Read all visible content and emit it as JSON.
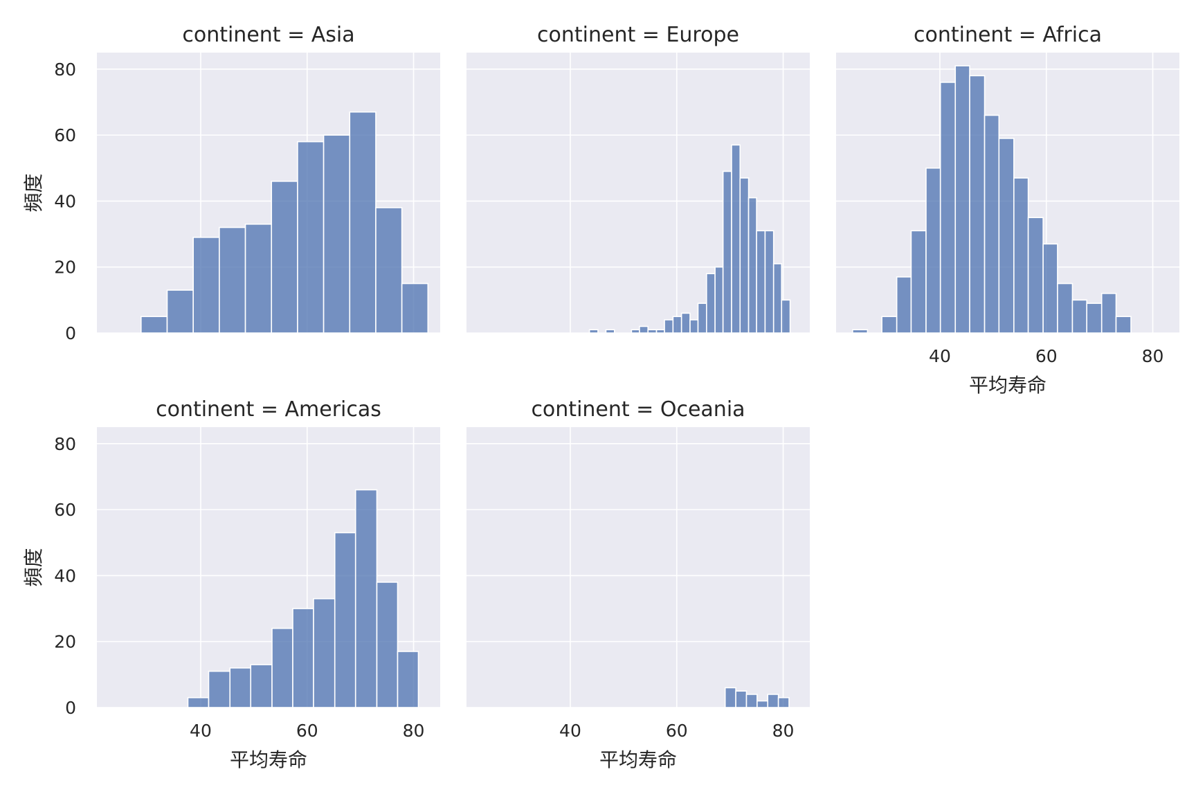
{
  "figure": {
    "background": "#ffffff",
    "panel_background": "#eaeaf2",
    "grid_color": "#ffffff",
    "bar_color": "#4c72b0",
    "bar_edge_color": "#ffffff"
  },
  "chart_data": [
    {
      "type": "bar",
      "title": "continent = Asia",
      "xlabel": "",
      "ylabel": "頻度",
      "xlim": [
        20.5,
        85
      ],
      "ylim": [
        0,
        85
      ],
      "xticks": [],
      "yticks": [
        0,
        20,
        40,
        60,
        80
      ],
      "grid": true,
      "bins": [
        {
          "x0": 28.8,
          "x1": 33.7,
          "count": 5
        },
        {
          "x0": 33.7,
          "x1": 38.6,
          "count": 13
        },
        {
          "x0": 38.6,
          "x1": 43.5,
          "count": 29
        },
        {
          "x0": 43.5,
          "x1": 48.4,
          "count": 32
        },
        {
          "x0": 48.4,
          "x1": 53.3,
          "count": 33
        },
        {
          "x0": 53.3,
          "x1": 58.2,
          "count": 46
        },
        {
          "x0": 58.2,
          "x1": 63.1,
          "count": 58
        },
        {
          "x0": 63.1,
          "x1": 68.0,
          "count": 60
        },
        {
          "x0": 68.0,
          "x1": 72.9,
          "count": 67
        },
        {
          "x0": 72.9,
          "x1": 77.8,
          "count": 38
        },
        {
          "x0": 77.8,
          "x1": 82.7,
          "count": 15
        }
      ]
    },
    {
      "type": "bar",
      "title": "continent = Europe",
      "xlabel": "",
      "ylabel": "",
      "xlim": [
        20.5,
        85
      ],
      "ylim": [
        0,
        85
      ],
      "xticks": [],
      "yticks": [],
      "grid": true,
      "bins": [
        {
          "x0": 43.6,
          "x1": 45.2,
          "count": 1
        },
        {
          "x0": 45.2,
          "x1": 46.7,
          "count": 0
        },
        {
          "x0": 46.7,
          "x1": 48.3,
          "count": 1
        },
        {
          "x0": 48.3,
          "x1": 49.9,
          "count": 0
        },
        {
          "x0": 49.9,
          "x1": 51.5,
          "count": 0
        },
        {
          "x0": 51.5,
          "x1": 53.0,
          "count": 1
        },
        {
          "x0": 53.0,
          "x1": 54.6,
          "count": 2
        },
        {
          "x0": 54.6,
          "x1": 56.2,
          "count": 1
        },
        {
          "x0": 56.2,
          "x1": 57.7,
          "count": 1
        },
        {
          "x0": 57.7,
          "x1": 59.3,
          "count": 4
        },
        {
          "x0": 59.3,
          "x1": 60.9,
          "count": 5
        },
        {
          "x0": 60.9,
          "x1": 62.5,
          "count": 6
        },
        {
          "x0": 62.5,
          "x1": 64.0,
          "count": 4
        },
        {
          "x0": 64.0,
          "x1": 65.6,
          "count": 9
        },
        {
          "x0": 65.6,
          "x1": 67.2,
          "count": 18
        },
        {
          "x0": 67.2,
          "x1": 68.7,
          "count": 20
        },
        {
          "x0": 68.7,
          "x1": 70.3,
          "count": 49
        },
        {
          "x0": 70.3,
          "x1": 71.9,
          "count": 57
        },
        {
          "x0": 71.9,
          "x1": 73.5,
          "count": 47
        },
        {
          "x0": 73.5,
          "x1": 75.0,
          "count": 41
        },
        {
          "x0": 75.0,
          "x1": 76.6,
          "count": 31
        },
        {
          "x0": 76.6,
          "x1": 78.2,
          "count": 31
        },
        {
          "x0": 78.2,
          "x1": 79.7,
          "count": 21
        },
        {
          "x0": 79.7,
          "x1": 81.3,
          "count": 10
        }
      ]
    },
    {
      "type": "bar",
      "title": "continent = Africa",
      "xlabel": "平均寿命",
      "ylabel": "",
      "xlim": [
        20.5,
        85
      ],
      "ylim": [
        0,
        85
      ],
      "xticks": [
        40,
        60,
        80
      ],
      "yticks": [],
      "grid": true,
      "bins": [
        {
          "x0": 23.6,
          "x1": 26.4,
          "count": 1
        },
        {
          "x0": 26.4,
          "x1": 29.1,
          "count": 0
        },
        {
          "x0": 29.1,
          "x1": 31.9,
          "count": 5
        },
        {
          "x0": 31.9,
          "x1": 34.6,
          "count": 17
        },
        {
          "x0": 34.6,
          "x1": 37.4,
          "count": 31
        },
        {
          "x0": 37.4,
          "x1": 40.1,
          "count": 50
        },
        {
          "x0": 40.1,
          "x1": 42.9,
          "count": 76
        },
        {
          "x0": 42.9,
          "x1": 45.6,
          "count": 81
        },
        {
          "x0": 45.6,
          "x1": 48.4,
          "count": 78
        },
        {
          "x0": 48.4,
          "x1": 51.1,
          "count": 66
        },
        {
          "x0": 51.1,
          "x1": 53.9,
          "count": 59
        },
        {
          "x0": 53.9,
          "x1": 56.6,
          "count": 47
        },
        {
          "x0": 56.6,
          "x1": 59.4,
          "count": 35
        },
        {
          "x0": 59.4,
          "x1": 62.1,
          "count": 27
        },
        {
          "x0": 62.1,
          "x1": 64.9,
          "count": 15
        },
        {
          "x0": 64.9,
          "x1": 67.6,
          "count": 10
        },
        {
          "x0": 67.6,
          "x1": 70.4,
          "count": 9
        },
        {
          "x0": 70.4,
          "x1": 73.1,
          "count": 12
        },
        {
          "x0": 73.1,
          "x1": 75.9,
          "count": 5
        }
      ]
    },
    {
      "type": "bar",
      "title": "continent = Americas",
      "xlabel": "平均寿命",
      "ylabel": "頻度",
      "xlim": [
        20.5,
        85
      ],
      "ylim": [
        0,
        85
      ],
      "xticks": [
        40,
        60,
        80
      ],
      "yticks": [
        0,
        20,
        40,
        60,
        80
      ],
      "grid": true,
      "bins": [
        {
          "x0": 37.6,
          "x1": 41.5,
          "count": 3
        },
        {
          "x0": 41.5,
          "x1": 45.5,
          "count": 11
        },
        {
          "x0": 45.5,
          "x1": 49.4,
          "count": 12
        },
        {
          "x0": 49.4,
          "x1": 53.4,
          "count": 13
        },
        {
          "x0": 53.4,
          "x1": 57.3,
          "count": 24
        },
        {
          "x0": 57.3,
          "x1": 61.2,
          "count": 30
        },
        {
          "x0": 61.2,
          "x1": 65.2,
          "count": 33
        },
        {
          "x0": 65.2,
          "x1": 69.1,
          "count": 53
        },
        {
          "x0": 69.1,
          "x1": 73.1,
          "count": 66
        },
        {
          "x0": 73.1,
          "x1": 77.0,
          "count": 38
        },
        {
          "x0": 77.0,
          "x1": 80.9,
          "count": 17
        }
      ]
    },
    {
      "type": "bar",
      "title": "continent = Oceania",
      "xlabel": "平均寿命",
      "ylabel": "",
      "xlim": [
        20.5,
        85
      ],
      "ylim": [
        0,
        85
      ],
      "xticks": [
        40,
        60,
        80
      ],
      "yticks": [],
      "grid": true,
      "bins": [
        {
          "x0": 69.1,
          "x1": 71.1,
          "count": 6
        },
        {
          "x0": 71.1,
          "x1": 73.1,
          "count": 5
        },
        {
          "x0": 73.1,
          "x1": 75.1,
          "count": 4
        },
        {
          "x0": 75.1,
          "x1": 77.1,
          "count": 2
        },
        {
          "x0": 77.1,
          "x1": 79.1,
          "count": 4
        },
        {
          "x0": 79.1,
          "x1": 81.1,
          "count": 3
        }
      ]
    }
  ]
}
